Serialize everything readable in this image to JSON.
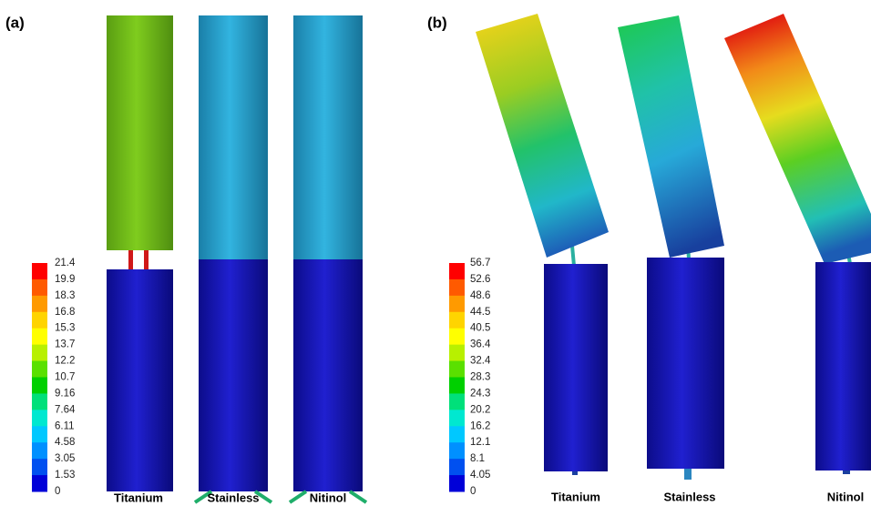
{
  "panels": [
    {
      "label": "(a)",
      "colorbar": [
        "21.4",
        "19.9",
        "18.3",
        "16.8",
        "15.3",
        "13.7",
        "12.2",
        "10.7",
        "9.16",
        "7.64",
        "6.11",
        "4.58",
        "3.05",
        "1.53",
        "0"
      ],
      "samples": [
        "Titanium",
        "Stainless",
        "Nitinol"
      ]
    },
    {
      "label": "(b)",
      "colorbar": [
        "56.7",
        "52.6",
        "48.6",
        "44.5",
        "40.5",
        "36.4",
        "32.4",
        "28.3",
        "24.3",
        "20.2",
        "16.2",
        "12.1",
        "8.1",
        "4.05",
        "0"
      ],
      "samples": [
        "Titanium",
        "Stainless",
        "Nitinol"
      ]
    }
  ]
}
